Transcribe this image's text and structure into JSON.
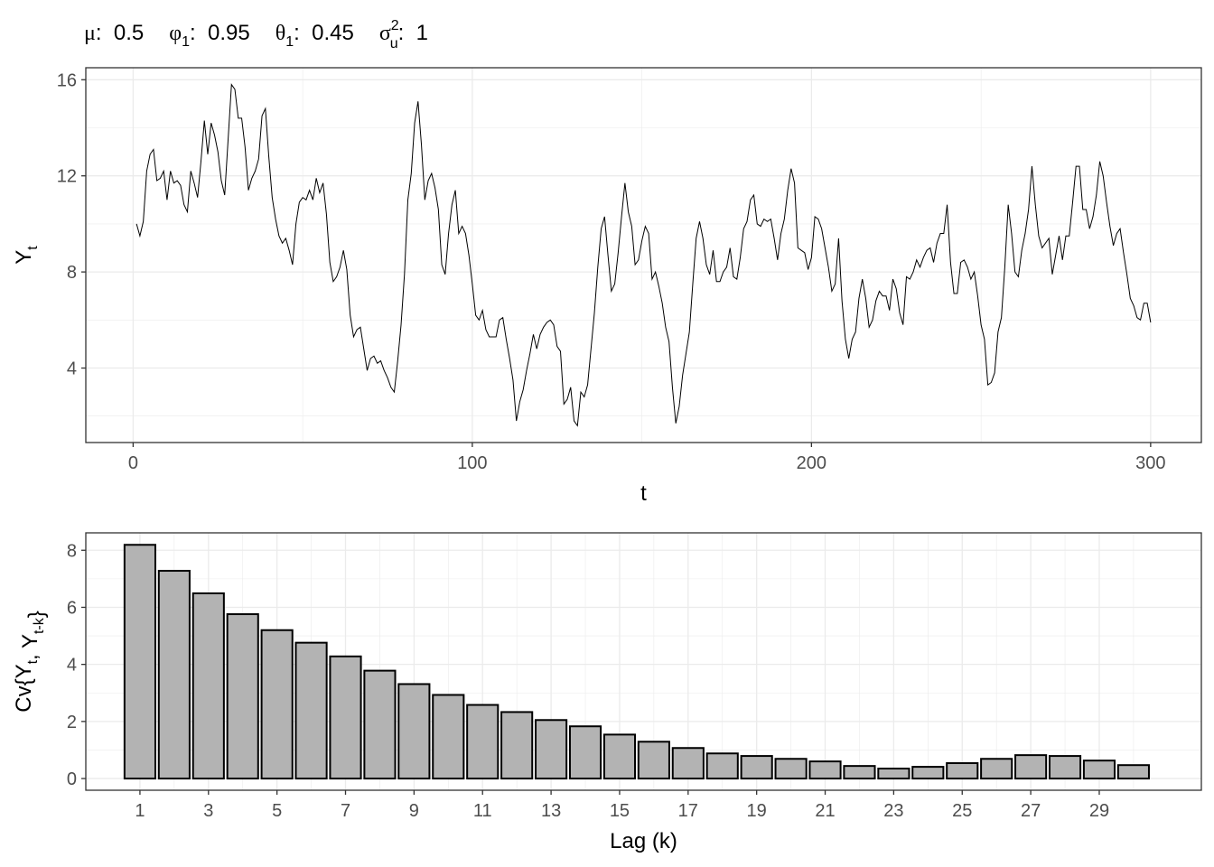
{
  "chart_data": [
    {
      "type": "line",
      "title_parts": [
        {
          "symbol": "μ",
          "text": ":  0.5"
        },
        {
          "symbol": "φ",
          "sub": "1",
          "text": ":  0.95"
        },
        {
          "symbol": "θ",
          "sub": "1",
          "text": ":  0.45"
        },
        {
          "symbol": "σ",
          "sup": "2",
          "sub": "u",
          "text": ":  1"
        }
      ],
      "xlabel": "t",
      "ylabel": [
        {
          "text": "Y"
        },
        {
          "text": "t",
          "sub": true
        }
      ],
      "color": "#000000",
      "x": [
        1,
        2,
        3,
        4,
        5,
        6,
        7,
        8,
        9,
        10,
        11,
        12,
        13,
        14,
        15,
        16,
        17,
        18,
        19,
        20,
        21,
        22,
        23,
        24,
        25,
        26,
        27,
        28,
        29,
        30,
        31,
        32,
        33,
        34,
        35,
        36,
        37,
        38,
        39,
        40,
        41,
        42,
        43,
        44,
        45,
        46,
        47,
        48,
        49,
        50,
        51,
        52,
        53,
        54,
        55,
        56,
        57,
        58,
        59,
        60,
        61,
        62,
        63,
        64,
        65,
        66,
        67,
        68,
        69,
        70,
        71,
        72,
        73,
        74,
        75,
        76,
        77,
        78,
        79,
        80,
        81,
        82,
        83,
        84,
        85,
        86,
        87,
        88,
        89,
        90,
        91,
        92,
        93,
        94,
        95,
        96,
        97,
        98,
        99,
        100,
        101,
        102,
        103,
        104,
        105,
        106,
        107,
        108,
        109,
        110,
        111,
        112,
        113,
        114,
        115,
        116,
        117,
        118,
        119,
        120,
        121,
        122,
        123,
        124,
        125,
        126,
        127,
        128,
        129,
        130,
        131,
        132,
        133,
        134,
        135,
        136,
        137,
        138,
        139,
        140,
        141,
        142,
        143,
        144,
        145,
        146,
        147,
        148,
        149,
        150,
        151,
        152,
        153,
        154,
        155,
        156,
        157,
        158,
        159,
        160,
        161,
        162,
        163,
        164,
        165,
        166,
        167,
        168,
        169,
        170,
        171,
        172,
        173,
        174,
        175,
        176,
        177,
        178,
        179,
        180,
        181,
        182,
        183,
        184,
        185,
        186,
        187,
        188,
        189,
        190,
        191,
        192,
        193,
        194,
        195,
        196,
        197,
        198,
        199,
        200,
        201,
        202,
        203,
        204,
        205,
        206,
        207,
        208,
        209,
        210,
        211,
        212,
        213,
        214,
        215,
        216,
        217,
        218,
        219,
        220,
        221,
        222,
        223,
        224,
        225,
        226,
        227,
        228,
        229,
        230,
        231,
        232,
        233,
        234,
        235,
        236,
        237,
        238,
        239,
        240,
        241,
        242,
        243,
        244,
        245,
        246,
        247,
        248,
        249,
        250,
        251,
        252,
        253,
        254,
        255,
        256,
        257,
        258,
        259,
        260,
        261,
        262,
        263,
        264,
        265,
        266,
        267,
        268,
        269,
        270,
        271,
        272,
        273,
        274,
        275,
        276,
        277,
        278,
        279,
        280,
        281,
        282,
        283,
        284,
        285,
        286,
        287,
        288,
        289,
        290,
        291,
        292,
        293,
        294,
        295,
        296,
        297,
        298,
        299,
        300
      ],
      "values": [
        10.0,
        9.5,
        10.1,
        12.2,
        12.9,
        13.1,
        11.8,
        11.9,
        12.2,
        11.0,
        12.2,
        11.7,
        11.8,
        11.6,
        10.8,
        10.5,
        12.2,
        11.7,
        11.1,
        12.6,
        14.3,
        12.9,
        14.2,
        13.7,
        13.0,
        11.8,
        11.2,
        13.5,
        15.8,
        15.6,
        14.4,
        14.4,
        13.2,
        11.4,
        11.9,
        12.2,
        12.7,
        14.5,
        14.8,
        12.8,
        11.1,
        10.2,
        9.5,
        9.2,
        9.4,
        8.9,
        8.3,
        10.0,
        10.9,
        11.1,
        11.0,
        11.4,
        11.0,
        11.9,
        11.3,
        11.7,
        10.4,
        8.4,
        7.6,
        7.8,
        8.2,
        8.9,
        8.1,
        6.2,
        5.3,
        5.6,
        5.7,
        4.8,
        3.9,
        4.4,
        4.5,
        4.2,
        4.3,
        3.9,
        3.6,
        3.2,
        3.0,
        4.3,
        5.8,
        7.9,
        11.0,
        12.1,
        14.2,
        15.1,
        13.3,
        11.0,
        11.8,
        12.1,
        11.5,
        10.6,
        8.3,
        7.9,
        9.6,
        10.8,
        11.4,
        9.6,
        9.9,
        9.6,
        8.7,
        7.5,
        6.2,
        6.0,
        6.4,
        5.6,
        5.3,
        5.3,
        5.3,
        6.0,
        6.1,
        5.2,
        4.4,
        3.5,
        1.8,
        2.6,
        3.1,
        3.9,
        4.6,
        5.4,
        4.8,
        5.4,
        5.7,
        5.9,
        6.0,
        5.8,
        4.9,
        4.7,
        2.5,
        2.7,
        3.2,
        1.8,
        1.6,
        3.0,
        2.8,
        3.3,
        4.8,
        6.3,
        8.2,
        9.8,
        10.3,
        8.7,
        7.2,
        7.5,
        8.8,
        10.3,
        11.7,
        10.5,
        9.9,
        8.3,
        8.5,
        9.3,
        9.9,
        9.6,
        7.7,
        8.0,
        7.4,
        6.7,
        5.7,
        5.1,
        3.2,
        1.7,
        2.4,
        3.7,
        4.6,
        5.5,
        7.5,
        9.4,
        10.1,
        9.4,
        8.3,
        7.9,
        8.9,
        7.6,
        7.6,
        8.0,
        8.2,
        9.0,
        7.8,
        7.7,
        8.6,
        9.8,
        10.1,
        11.0,
        11.2,
        10.0,
        9.9,
        10.2,
        10.1,
        10.2,
        9.4,
        8.5,
        9.6,
        10.2,
        11.4,
        12.3,
        11.7,
        9.0,
        8.9,
        8.8,
        8.1,
        8.6,
        10.3,
        10.2,
        9.8,
        9.0,
        8.2,
        7.2,
        7.5,
        9.4,
        6.8,
        5.2,
        4.4,
        5.2,
        5.5,
        6.9,
        7.7,
        6.9,
        5.7,
        6.0,
        6.8,
        7.2,
        7.0,
        7.0,
        6.4,
        7.7,
        7.3,
        6.3,
        5.8,
        7.8,
        7.7,
        8.0,
        8.5,
        8.2,
        8.6,
        8.9,
        9.0,
        8.4,
        9.2,
        9.6,
        9.6,
        10.8,
        8.4,
        7.1,
        7.1,
        8.4,
        8.5,
        8.2,
        7.7,
        8.0,
        7.0,
        5.8,
        5.2,
        3.3,
        3.4,
        3.8,
        5.5,
        6.1,
        8.2,
        10.8,
        9.6,
        8.0,
        7.8,
        8.9,
        9.6,
        10.6,
        12.4,
        10.8,
        9.5,
        9.0,
        9.2,
        9.4,
        7.9,
        8.7,
        9.5,
        8.5,
        9.5,
        9.5,
        10.9,
        12.4,
        12.4,
        10.6,
        10.6,
        9.8,
        10.3,
        11.2,
        12.6,
        12.0,
        10.9,
        9.9,
        9.1,
        9.6,
        9.8,
        8.8,
        7.9,
        6.9,
        6.6,
        6.1,
        6.0,
        6.7,
        6.7,
        5.9
      ],
      "xlim": [
        -13.95,
        314.95
      ],
      "xticks": [
        0,
        100,
        200,
        300
      ],
      "xminor": [
        50,
        150,
        250
      ],
      "ylim": [
        0.9,
        16.5
      ],
      "yticks": [
        4,
        8,
        12,
        16
      ],
      "yminor": [
        2,
        6,
        10,
        14
      ],
      "grid": true
    },
    {
      "type": "bar",
      "xlabel": "Lag (k)",
      "ylabel": [
        {
          "text": "Cv{Y"
        },
        {
          "text": "t",
          "sub": true
        },
        {
          "text": ", Y"
        },
        {
          "text": "t-k",
          "sub": true
        },
        {
          "text": "}"
        }
      ],
      "color": "#b3b3b3",
      "edgecolor": "#000000",
      "x": [
        1,
        2,
        3,
        4,
        5,
        6,
        7,
        8,
        9,
        10,
        11,
        12,
        13,
        14,
        15,
        16,
        17,
        18,
        19,
        20,
        21,
        22,
        23,
        24,
        25,
        26,
        27,
        28,
        29,
        30
      ],
      "values": [
        8.19,
        7.28,
        6.49,
        5.76,
        5.2,
        4.76,
        4.28,
        3.78,
        3.31,
        2.93,
        2.58,
        2.33,
        2.05,
        1.83,
        1.54,
        1.29,
        1.07,
        0.88,
        0.79,
        0.69,
        0.6,
        0.44,
        0.35,
        0.41,
        0.54,
        0.69,
        0.82,
        0.79,
        0.63,
        0.47
      ],
      "xlim": [
        -0.58,
        31.98
      ],
      "xticks": [
        1,
        3,
        5,
        7,
        9,
        11,
        13,
        15,
        17,
        19,
        21,
        23,
        25,
        27,
        29
      ],
      "xminor": [
        2,
        4,
        6,
        8,
        10,
        12,
        14,
        16,
        18,
        20,
        22,
        24,
        26,
        28,
        30
      ],
      "ylim": [
        -0.41,
        8.61
      ],
      "yticks": [
        0,
        2,
        4,
        6,
        8
      ],
      "yminor": [
        1,
        3,
        5,
        7
      ],
      "grid": true
    }
  ]
}
